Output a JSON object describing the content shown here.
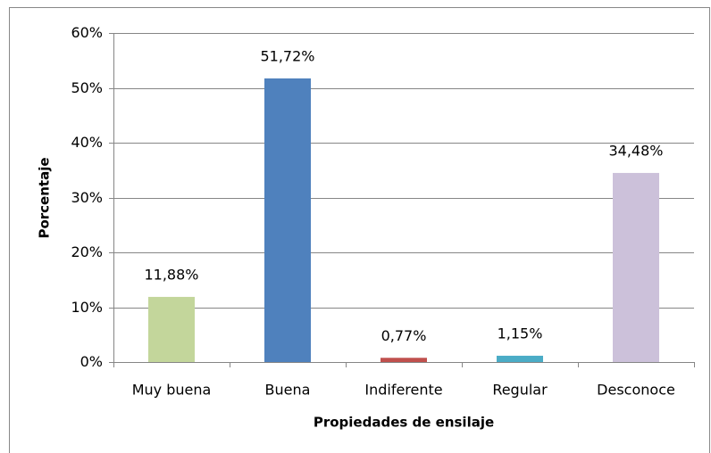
{
  "chart_data": {
    "type": "bar",
    "xlabel": "Propiedades de ensilaje",
    "ylabel": "Porcentaje",
    "categories": [
      "Muy buena",
      "Buena",
      "Indiferente",
      "Regular",
      "Desconoce"
    ],
    "values": [
      11.88,
      51.72,
      0.77,
      1.15,
      34.48
    ],
    "value_labels": [
      "11,88%",
      "51,72%",
      "0,77%",
      "1,15%",
      "34,48%"
    ],
    "colors": [
      "#c3d69b",
      "#4f81bd",
      "#c0504d",
      "#4bacc6",
      "#ccc1da"
    ],
    "ylim": [
      0,
      60
    ],
    "yticks": [
      {
        "value": 0,
        "label": "0%"
      },
      {
        "value": 10,
        "label": "10%"
      },
      {
        "value": 20,
        "label": "20%"
      },
      {
        "value": 30,
        "label": "30%"
      },
      {
        "value": 40,
        "label": "40%"
      },
      {
        "value": 50,
        "label": "50%"
      },
      {
        "value": 60,
        "label": "60%"
      }
    ],
    "grid": true
  }
}
